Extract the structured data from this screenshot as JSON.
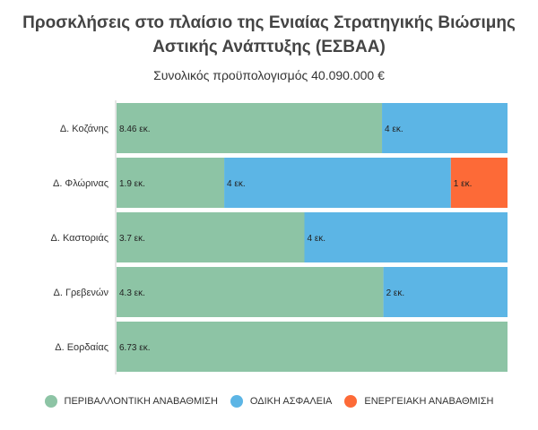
{
  "chart_data": {
    "type": "bar",
    "orientation": "horizontal",
    "stacked": "percent",
    "title": "Προσκλήσεις στο πλαίσιο της Ενιαίας Στρατηγικής Βιώσιμης Αστικής Ανάπτυξης (ΕΣΒΑΑ)",
    "subtitle": "Συνολικός προϋπολογισμός 40.090.000 €",
    "categories": [
      "Δ. Κοζάνης",
      "Δ. Φλώρινας",
      "Δ. Καστοριάς",
      "Δ. Γρεβενών",
      "Δ. Εορδαίας"
    ],
    "unit_suffix": " εκ.",
    "series": [
      {
        "name": "ΠΕΡΙΒΑΛΛΟΝΤΙΚΗ ΑΝΑΒΑΘΜΙΣΗ",
        "color": "#8dc4a5",
        "values": [
          8.46,
          1.9,
          3.7,
          4.3,
          6.73
        ]
      },
      {
        "name": "ΟΔΙΚΗ ΑΣΦΑΛΕΙΑ",
        "color": "#5cb5e5",
        "values": [
          4,
          4,
          4,
          2,
          0
        ]
      },
      {
        "name": "ΕΝΕΡΓΕΙΑΚΗ ΑΝΑΒΑΘΜΙΣΗ",
        "color": "#fd6a37",
        "values": [
          0,
          1,
          0,
          0,
          0
        ]
      }
    ],
    "legend": "bottom",
    "grid": false
  }
}
